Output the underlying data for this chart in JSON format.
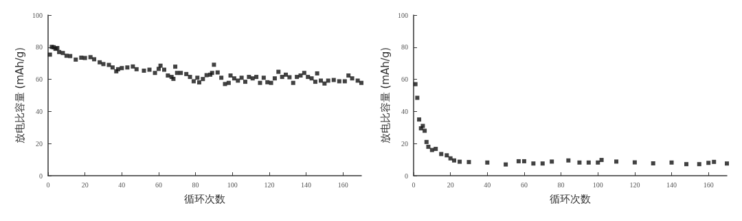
{
  "chart_data": [
    {
      "type": "scatter",
      "xlabel": "循环次数",
      "ylabel": "放电比容量 (mAh/g)",
      "xlim": [
        0,
        170
      ],
      "xticks": [
        0,
        20,
        40,
        60,
        80,
        100,
        120,
        140,
        160
      ],
      "ylim": [
        0,
        100
      ],
      "yticks": [
        0,
        20,
        40,
        60,
        80,
        100
      ],
      "marker": "square",
      "grid": false,
      "color": "#111111",
      "x": [
        1,
        2,
        3,
        4,
        5,
        6,
        8,
        10,
        12,
        15,
        18,
        20,
        23,
        25,
        28,
        30,
        33,
        35,
        37,
        38,
        40,
        43,
        46,
        48,
        52,
        55,
        58,
        60,
        61,
        63,
        65,
        67,
        68,
        69,
        70,
        72,
        75,
        77,
        79,
        81,
        82,
        84,
        86,
        88,
        89,
        90,
        92,
        94,
        96,
        98,
        99,
        101,
        103,
        105,
        107,
        109,
        111,
        113,
        115,
        117,
        119,
        121,
        123,
        125,
        127,
        129,
        131,
        133,
        135,
        137,
        139,
        141,
        143,
        145,
        146,
        148,
        150,
        152,
        155,
        158,
        161,
        163,
        165,
        168,
        170
      ],
      "values": [
        75.4,
        80.2,
        80,
        79,
        79.5,
        77,
        76.4,
        74.7,
        74.5,
        72.3,
        73.5,
        73.3,
        73.8,
        72.5,
        70.6,
        69.5,
        69,
        67.4,
        65,
        66.3,
        67,
        67.4,
        68,
        66.3,
        65.4,
        66,
        64,
        66.5,
        68.5,
        66,
        62.4,
        61.5,
        60.3,
        67.9,
        64,
        64,
        63.3,
        61.5,
        58.8,
        61,
        58.1,
        60.2,
        62.6,
        62.9,
        64,
        69.1,
        64.3,
        61,
        57.1,
        57.8,
        62.4,
        60.6,
        59.2,
        61,
        58.5,
        61.5,
        60.6,
        61.5,
        57.8,
        61,
        58.2,
        57.8,
        60.6,
        64.7,
        61.5,
        62.9,
        61.3,
        57.8,
        61.5,
        62.4,
        64,
        61.5,
        60.6,
        58.5,
        63.7,
        59.2,
        57.4,
        59.2,
        59.6,
        58.8,
        58.8,
        62.4,
        60.6,
        59.2,
        57.8
      ]
    },
    {
      "type": "scatter",
      "xlabel": "循环次数",
      "ylabel": "放电比容量 (mAh/g)",
      "xlim": [
        0,
        170
      ],
      "xticks": [
        0,
        20,
        40,
        60,
        80,
        100,
        120,
        140,
        160
      ],
      "ylim": [
        0,
        100
      ],
      "yticks": [
        0,
        20,
        40,
        60,
        80,
        100
      ],
      "marker": "square",
      "grid": false,
      "color": "#111111",
      "x": [
        1,
        2,
        3,
        4,
        5,
        6,
        7,
        8,
        10,
        12,
        15,
        18,
        20,
        22,
        25,
        30,
        40,
        50,
        57,
        60,
        65,
        70,
        75,
        84,
        90,
        95,
        100,
        102,
        110,
        120,
        130,
        140,
        148,
        155,
        160,
        163,
        170
      ],
      "values": [
        57,
        48.5,
        35,
        29.5,
        31,
        28,
        21,
        18,
        16,
        16.7,
        13.5,
        12.7,
        10.8,
        9.5,
        8.7,
        8.5,
        8.2,
        7,
        9,
        9,
        7.6,
        7.6,
        8.8,
        9.5,
        8.2,
        8.2,
        8.2,
        9.8,
        8.8,
        8.3,
        7.7,
        8.2,
        7.2,
        7.2,
        8,
        8.6,
        7.6
      ]
    }
  ]
}
